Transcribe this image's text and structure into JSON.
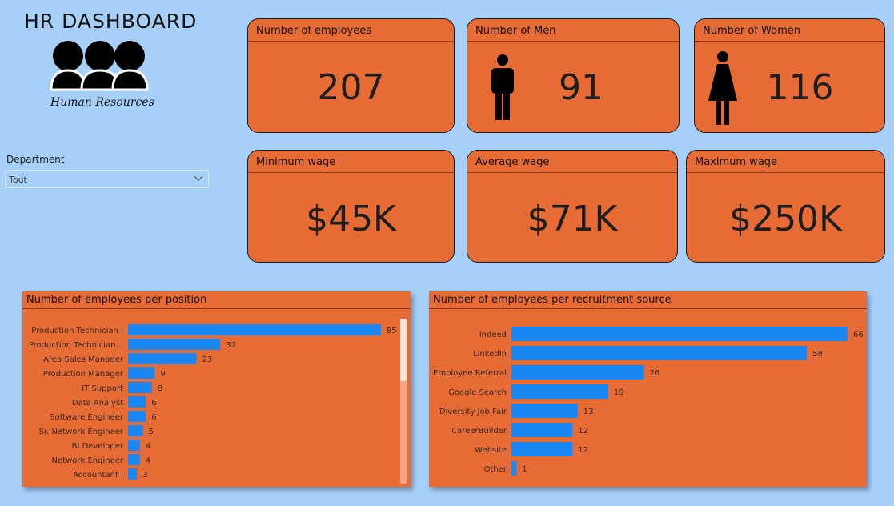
{
  "header": {
    "title": "HR DASHBOARD",
    "logo_text": "Human Resources"
  },
  "filter": {
    "label": "Department",
    "value": "Tout"
  },
  "kpis": {
    "employees": {
      "label": "Number of employees",
      "value": "207"
    },
    "men": {
      "label": "Number of Men",
      "value": "91"
    },
    "women": {
      "label": "Number of Women",
      "value": "116"
    },
    "min_wage": {
      "label": "Minimum wage",
      "value": "$45K"
    },
    "avg_wage": {
      "label": "Average wage",
      "value": "$71K"
    },
    "max_wage": {
      "label": "Maximum wage",
      "value": "$250K"
    }
  },
  "colors": {
    "background": "#a7d0f8",
    "card": "#e66b35",
    "bar": "#1a87f5"
  },
  "chart_data": [
    {
      "type": "bar",
      "orientation": "horizontal",
      "title": "Number of employees per position",
      "categories": [
        "Production Technician I",
        "Production Technician...",
        "Area Sales Manager",
        "Production Manager",
        "IT Support",
        "Data Analyst",
        "Software Engineer",
        "Sr. Network Engineer",
        "BI Developer",
        "Network Engineer",
        "Accountant I"
      ],
      "values": [
        85,
        31,
        23,
        9,
        8,
        6,
        6,
        5,
        4,
        4,
        3
      ],
      "xmax": 85
    },
    {
      "type": "bar",
      "orientation": "horizontal",
      "title": "Number of employees per recruitment source",
      "categories": [
        "Indeed",
        "LinkedIn",
        "Employee Referral",
        "Google Search",
        "Diversity Job Fair",
        "CareerBuilder",
        "Website",
        "Other"
      ],
      "values": [
        66,
        58,
        26,
        19,
        13,
        12,
        12,
        1
      ],
      "xmax": 66
    }
  ]
}
